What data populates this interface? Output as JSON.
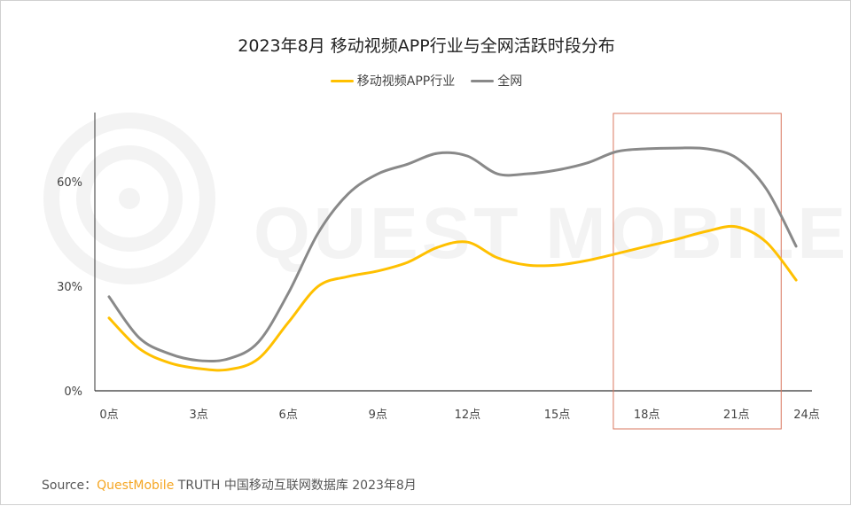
{
  "chart_data": {
    "type": "line",
    "title": "2023年8月 移动视频APP行业与全网活跃时段分布",
    "xlabel": "",
    "ylabel": "",
    "x_tick_labels": [
      "0点",
      "3点",
      "6点",
      "9点",
      "12点",
      "15点",
      "18点",
      "21点",
      "24点"
    ],
    "y_tick_labels": [
      "0%",
      "30%",
      "60%"
    ],
    "ylim": [
      0,
      80
    ],
    "x": [
      0,
      1,
      2,
      3,
      4,
      5,
      6,
      7,
      8,
      9,
      10,
      11,
      12,
      13,
      14,
      15,
      16,
      17,
      18,
      19,
      20,
      21,
      22,
      23
    ],
    "series": [
      {
        "name": "移动视频APP行业",
        "color": "#FFC000",
        "values": [
          20.9,
          12.2,
          8.1,
          6.4,
          6.1,
          9.2,
          19.6,
          30.0,
          32.8,
          34.4,
          36.9,
          41.2,
          42.7,
          38.2,
          36.1,
          36.1,
          37.4,
          39.4,
          41.5,
          43.5,
          45.8,
          47.1,
          42.7,
          31.8
        ]
      },
      {
        "name": "全网",
        "color": "#898989",
        "values": [
          27.0,
          15.3,
          10.7,
          8.7,
          9.2,
          14.0,
          28.0,
          45.3,
          56.5,
          62.3,
          65.1,
          68.2,
          67.4,
          62.3,
          62.3,
          63.4,
          65.4,
          68.7,
          69.5,
          69.7,
          69.5,
          66.9,
          58.0,
          41.5
        ]
      }
    ],
    "highlight_range": [
      17,
      22.5
    ],
    "highlight_color": "#d9775f",
    "grid": false,
    "legend_position": "top"
  },
  "watermark": "QUEST MOBILE",
  "source": {
    "label": "Source：",
    "brand": "QuestMobile",
    "text": "TRUTH 中国移动互联网数据库 2023年8月"
  }
}
